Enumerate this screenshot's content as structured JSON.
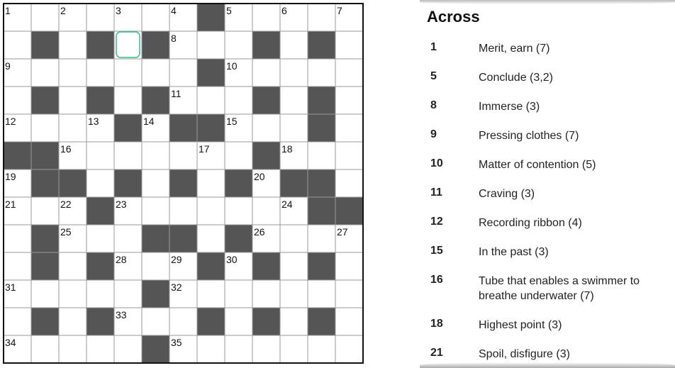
{
  "grid": {
    "numbers": [
      "1",
      "2",
      "3",
      "4",
      "5",
      "6",
      "7",
      "8",
      "9",
      "10",
      "11",
      "12",
      "13",
      "14",
      "15",
      "16",
      "17",
      "18",
      "19",
      "20",
      "21",
      "22",
      "23",
      "24",
      "25",
      "26",
      "27",
      "28",
      "29",
      "30",
      "31",
      "32",
      "33",
      "34",
      "35"
    ]
  },
  "clues": {
    "title": "Across",
    "items": [
      {
        "number": "1",
        "text": "Merit, earn (7)"
      },
      {
        "number": "5",
        "text": "Conclude (3,2)"
      },
      {
        "number": "8",
        "text": "Immerse (3)"
      },
      {
        "number": "9",
        "text": "Pressing clothes (7)"
      },
      {
        "number": "10",
        "text": "Matter of contention (5)"
      },
      {
        "number": "11",
        "text": "Craving (3)"
      },
      {
        "number": "12",
        "text": "Recording ribbon (4)"
      },
      {
        "number": "15",
        "text": "In the past (3)"
      },
      {
        "number": "16",
        "text": "Tube that enables a swimmer to breathe underwater (7)"
      },
      {
        "number": "18",
        "text": "Highest point (3)"
      },
      {
        "number": "21",
        "text": "Spoil, disfigure (3)"
      }
    ]
  }
}
